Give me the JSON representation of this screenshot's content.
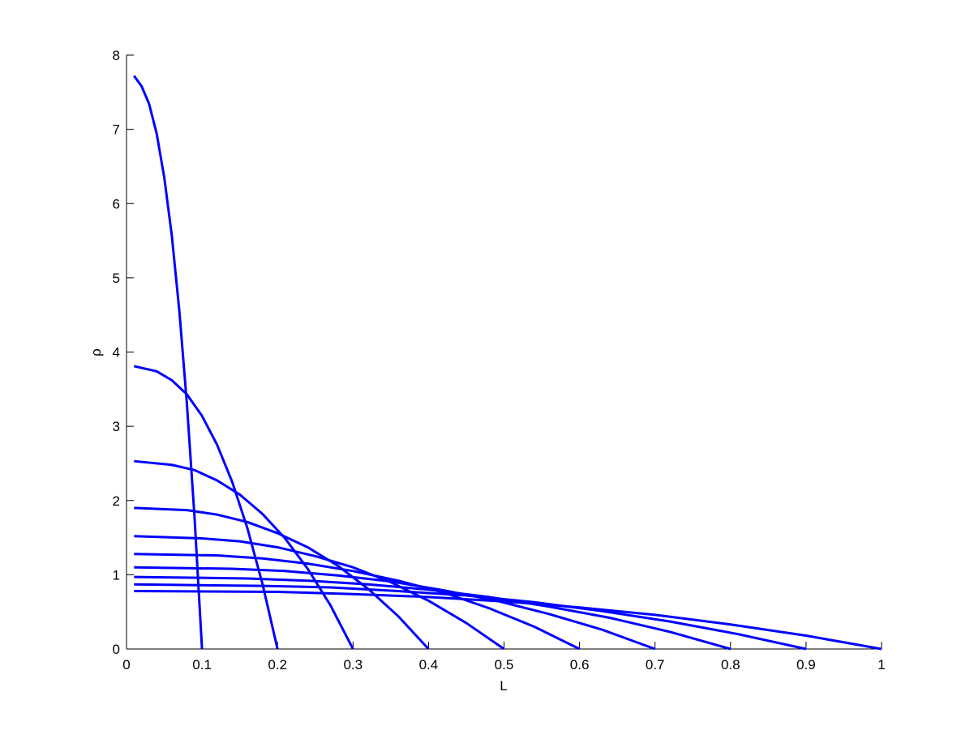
{
  "chart_data": {
    "type": "line",
    "xlabel": "L",
    "ylabel": "ρ",
    "xlim": [
      0,
      1
    ],
    "ylim": [
      0,
      8
    ],
    "xticks": [
      0,
      0.1,
      0.2,
      0.3,
      0.4,
      0.5,
      0.6,
      0.7,
      0.8,
      0.9,
      1
    ],
    "yticks": [
      0,
      1,
      2,
      3,
      4,
      5,
      6,
      7,
      8
    ],
    "grid": false,
    "series": [
      {
        "color": "#0000ff",
        "x": [
          0.01,
          0.02,
          0.03,
          0.04,
          0.05,
          0.06,
          0.07,
          0.08,
          0.09,
          0.1
        ],
        "values": [
          7.72,
          7.58,
          7.34,
          6.94,
          6.35,
          5.57,
          4.55,
          3.3,
          1.79,
          0
        ]
      },
      {
        "color": "#0000ff",
        "x": [
          0.01,
          0.04,
          0.06,
          0.08,
          0.1,
          0.12,
          0.14,
          0.16,
          0.18,
          0.2
        ],
        "values": [
          3.81,
          3.74,
          3.62,
          3.43,
          3.14,
          2.75,
          2.25,
          1.63,
          0.88,
          0
        ]
      },
      {
        "color": "#0000ff",
        "x": [
          0.01,
          0.06,
          0.09,
          0.12,
          0.15,
          0.18,
          0.21,
          0.24,
          0.27,
          0.3
        ],
        "values": [
          2.53,
          2.48,
          2.41,
          2.27,
          2.08,
          1.82,
          1.49,
          1.08,
          0.59,
          0
        ]
      },
      {
        "color": "#0000ff",
        "x": [
          0.01,
          0.08,
          0.12,
          0.16,
          0.2,
          0.24,
          0.28,
          0.32,
          0.36,
          0.4
        ],
        "values": [
          1.9,
          1.87,
          1.81,
          1.71,
          1.56,
          1.37,
          1.12,
          0.81,
          0.44,
          0
        ]
      },
      {
        "color": "#0000ff",
        "x": [
          0.01,
          0.1,
          0.15,
          0.2,
          0.25,
          0.3,
          0.35,
          0.4,
          0.45,
          0.5
        ],
        "values": [
          1.52,
          1.49,
          1.45,
          1.37,
          1.25,
          1.1,
          0.9,
          0.65,
          0.35,
          0
        ]
      },
      {
        "color": "#0000ff",
        "x": [
          0.01,
          0.12,
          0.18,
          0.24,
          0.3,
          0.36,
          0.42,
          0.48,
          0.54,
          0.6
        ],
        "values": [
          1.28,
          1.26,
          1.22,
          1.15,
          1.05,
          0.92,
          0.76,
          0.55,
          0.3,
          0
        ]
      },
      {
        "color": "#0000ff",
        "x": [
          0.01,
          0.14,
          0.21,
          0.28,
          0.35,
          0.42,
          0.49,
          0.56,
          0.63,
          0.7
        ],
        "values": [
          1.1,
          1.08,
          1.05,
          0.99,
          0.91,
          0.79,
          0.65,
          0.47,
          0.26,
          0
        ]
      },
      {
        "color": "#0000ff",
        "x": [
          0.01,
          0.16,
          0.24,
          0.32,
          0.4,
          0.48,
          0.56,
          0.64,
          0.72,
          0.8
        ],
        "values": [
          0.97,
          0.95,
          0.92,
          0.87,
          0.8,
          0.7,
          0.57,
          0.42,
          0.23,
          0
        ]
      },
      {
        "color": "#0000ff",
        "x": [
          0.01,
          0.18,
          0.27,
          0.36,
          0.45,
          0.54,
          0.63,
          0.72,
          0.81,
          0.9
        ],
        "values": [
          0.87,
          0.85,
          0.83,
          0.78,
          0.72,
          0.63,
          0.51,
          0.37,
          0.2,
          0
        ]
      },
      {
        "color": "#0000ff",
        "x": [
          0.01,
          0.2,
          0.3,
          0.4,
          0.5,
          0.6,
          0.7,
          0.8,
          0.9,
          1
        ],
        "values": [
          0.78,
          0.77,
          0.74,
          0.7,
          0.64,
          0.56,
          0.46,
          0.33,
          0.18,
          0
        ]
      }
    ]
  }
}
